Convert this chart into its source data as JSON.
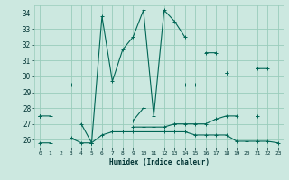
{
  "xlabel": "Humidex (Indice chaleur)",
  "bg_color": "#cce8e0",
  "grid_color": "#99ccbb",
  "line_color": "#006655",
  "xlim": [
    -0.5,
    23.5
  ],
  "ylim": [
    25.5,
    34.5
  ],
  "xticks": [
    0,
    1,
    2,
    3,
    4,
    5,
    6,
    7,
    8,
    9,
    10,
    11,
    12,
    13,
    14,
    15,
    16,
    17,
    18,
    19,
    20,
    21,
    22,
    23
  ],
  "yticks": [
    26,
    27,
    28,
    29,
    30,
    31,
    32,
    33,
    34
  ],
  "series": [
    [
      27.5,
      27.5,
      null,
      null,
      27.0,
      25.8,
      33.8,
      29.7,
      31.7,
      32.5,
      34.2,
      27.5,
      34.2,
      33.5,
      32.5,
      null,
      31.5,
      31.5,
      null,
      null,
      null,
      30.5,
      30.5,
      null
    ],
    [
      27.5,
      null,
      null,
      29.5,
      null,
      25.8,
      null,
      null,
      null,
      null,
      28.0,
      null,
      null,
      null,
      29.5,
      null,
      null,
      null,
      30.2,
      null,
      null,
      null,
      null,
      null
    ],
    [
      27.5,
      null,
      null,
      null,
      null,
      null,
      null,
      null,
      null,
      27.2,
      28.0,
      null,
      null,
      27.0,
      null,
      29.5,
      null,
      null,
      30.2,
      null,
      null,
      null,
      null,
      null
    ],
    [
      25.8,
      25.8,
      null,
      26.1,
      25.8,
      25.8,
      26.3,
      26.5,
      26.5,
      26.5,
      26.5,
      26.5,
      26.5,
      26.5,
      26.5,
      26.3,
      26.3,
      26.3,
      26.3,
      25.9,
      25.9,
      25.9,
      25.9,
      25.8
    ],
    [
      null,
      null,
      null,
      null,
      null,
      null,
      null,
      null,
      null,
      26.8,
      26.8,
      26.8,
      26.8,
      27.0,
      27.0,
      27.0,
      27.0,
      27.3,
      27.5,
      27.5,
      null,
      27.5,
      null,
      null
    ]
  ]
}
